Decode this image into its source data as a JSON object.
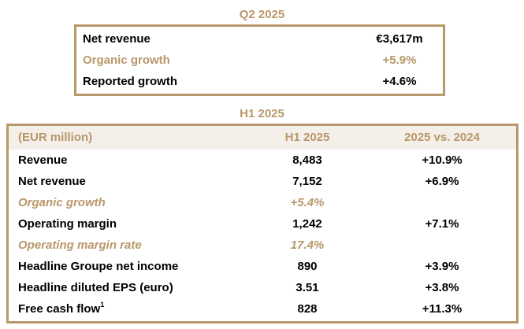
{
  "q2": {
    "title": "Q2 2025",
    "rows": [
      {
        "label": "Net revenue",
        "value": "€3,617m"
      },
      {
        "label": "Organic growth",
        "value": "+5.9%"
      },
      {
        "label": "Reported growth",
        "value": "+4.6%"
      }
    ]
  },
  "h1": {
    "title": "H1 2025",
    "headers": {
      "label": "(EUR million)",
      "col1": "H1 2025",
      "col2": "2025 vs. 2024"
    },
    "rows": [
      {
        "label": "Revenue",
        "value": "8,483",
        "change": "+10.9%"
      },
      {
        "label": "Net revenue",
        "value": "7,152",
        "change": "+6.9%"
      },
      {
        "label": "Organic growth",
        "value": "+5.4%",
        "change": ""
      },
      {
        "label": "Operating margin",
        "value": "1,242",
        "change": "+7.1%"
      },
      {
        "label": "Operating margin rate",
        "value": "17.4%",
        "change": ""
      },
      {
        "label": "Headline Groupe net income",
        "value": "890",
        "change": "+3.9%"
      },
      {
        "label": "Headline diluted EPS (euro)",
        "value": "3.51",
        "change": "+3.8%"
      },
      {
        "label": "Free cash flow",
        "footnote": "1",
        "value": "828",
        "change": "+11.3%"
      }
    ]
  },
  "colors": {
    "accent": "#b8976a",
    "header_band": "#f4efe9"
  }
}
